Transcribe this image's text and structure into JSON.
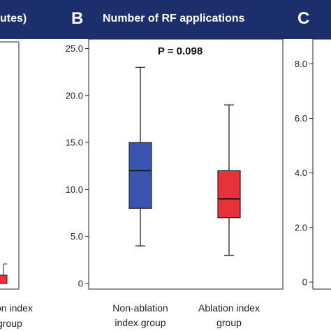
{
  "banner": {
    "left_title": "utes)",
    "panel_b_letter": "B",
    "panel_b_title": "Number of RF applications",
    "panel_c_letter": "C",
    "background": "#1a2f6b"
  },
  "left_panel": {
    "category_lines": [
      "on index",
      "group"
    ],
    "box_color": "#e8323a"
  },
  "chart_data": [
    {
      "type": "box",
      "panel": "B",
      "title": "Number of RF applications",
      "annotation": "P = 0.098",
      "categories": [
        "Non-ablation index group",
        "Ablation index group"
      ],
      "category_lines": [
        [
          "Non-ablation",
          "index group"
        ],
        [
          "Ablation index",
          "group"
        ]
      ],
      "yticks": [
        0,
        5.0,
        10.0,
        15.0,
        20.0,
        25.0
      ],
      "ytick_labels": [
        "0",
        "5.0",
        "10.0",
        "15.0",
        "20.0",
        "25.0"
      ],
      "ylim": [
        0,
        26
      ],
      "series": [
        {
          "category": "Non-ablation index group",
          "min": 4,
          "q1": 8,
          "median": 12,
          "q3": 15,
          "max": 23,
          "color": "#3a55b0"
        },
        {
          "category": "Ablation index group",
          "min": 3,
          "q1": 7,
          "median": 9,
          "q3": 12,
          "max": 19,
          "color": "#e8323a"
        }
      ]
    },
    {
      "type": "box",
      "panel": "C",
      "yticks": [
        0,
        2.0,
        4.0,
        6.0,
        8.0
      ],
      "ytick_labels": [
        "0",
        "2.0",
        "4.0",
        "6.0",
        "8.0"
      ],
      "ylim": [
        0,
        8.8
      ]
    }
  ]
}
